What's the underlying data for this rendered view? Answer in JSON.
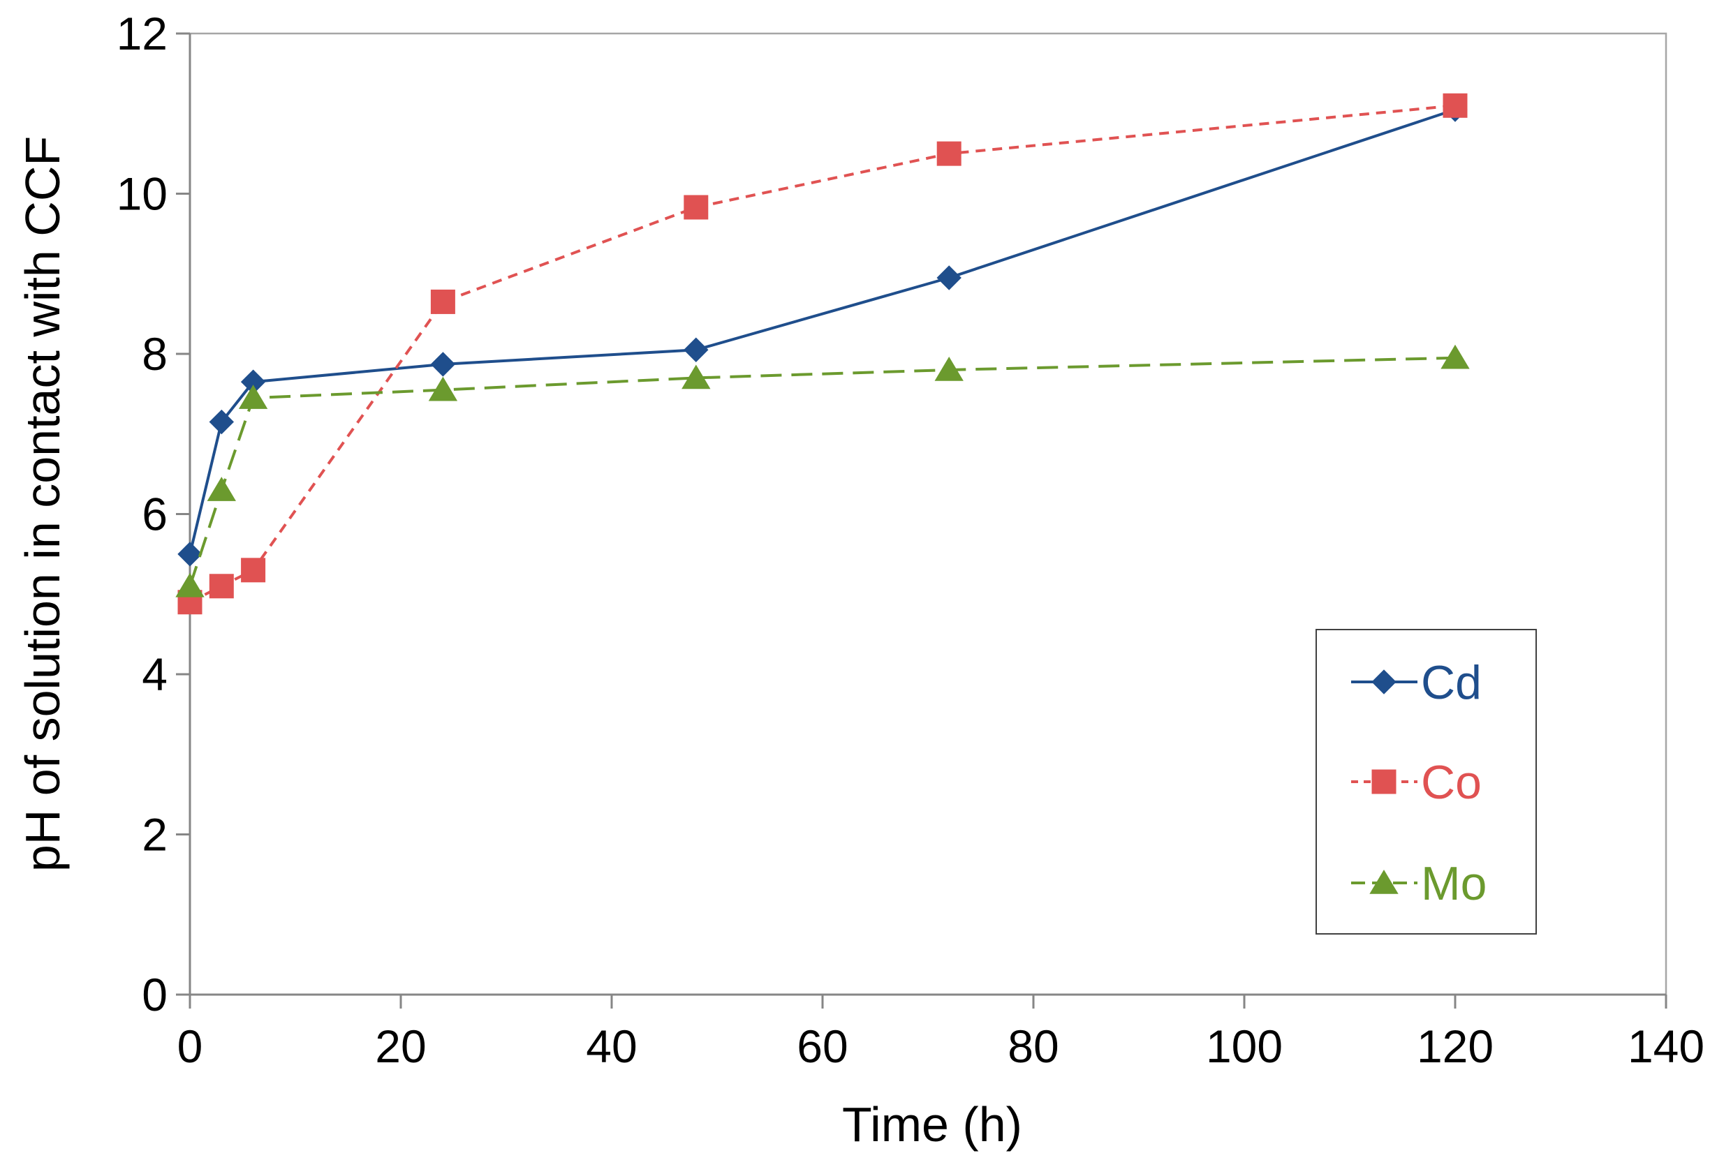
{
  "chart_data": {
    "type": "line",
    "title": "",
    "xlabel": "Time (h)",
    "ylabel": "pH of solution in contact with CCF",
    "xlim": [
      0,
      140
    ],
    "ylim": [
      0,
      12
    ],
    "xticks": [
      0,
      20,
      40,
      60,
      80,
      100,
      120,
      140
    ],
    "yticks": [
      0,
      2,
      4,
      6,
      8,
      10,
      12
    ],
    "x_tick_labels": [
      "0",
      "20",
      "40",
      "60",
      "80",
      "100",
      "120",
      "140"
    ],
    "y_tick_labels": [
      "0",
      "2",
      "4",
      "6",
      "8",
      "10",
      "12"
    ],
    "grid": false,
    "legend_position": "right-lower",
    "series": [
      {
        "name": "Cd",
        "marker": "diamond",
        "line_style": "solid",
        "color": "#1f4e8c",
        "x": [
          0,
          3,
          6,
          24,
          48,
          72,
          120
        ],
        "values": [
          5.5,
          7.15,
          7.65,
          7.87,
          8.05,
          8.95,
          11.05
        ]
      },
      {
        "name": "Co",
        "marker": "square",
        "line_style": "dashed",
        "color": "#e05252",
        "x": [
          0,
          3,
          6,
          24,
          48,
          72,
          120
        ],
        "values": [
          4.9,
          5.1,
          5.3,
          8.65,
          9.83,
          10.5,
          11.1
        ]
      },
      {
        "name": "Mo",
        "marker": "triangle",
        "line_style": "long-dashed",
        "color": "#6b9a2e",
        "x": [
          0,
          3,
          6,
          24,
          48,
          72,
          120
        ],
        "values": [
          5.1,
          6.3,
          7.45,
          7.55,
          7.7,
          7.8,
          7.95
        ]
      }
    ]
  }
}
